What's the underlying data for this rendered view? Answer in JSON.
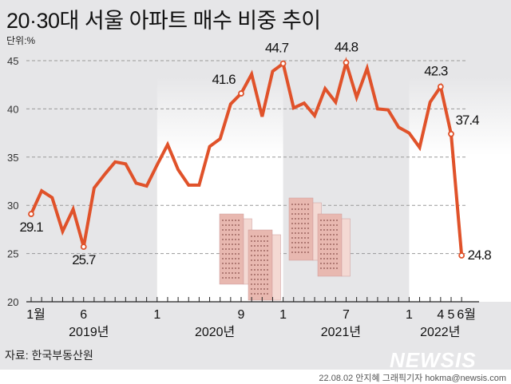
{
  "title": "20·30대 서울 아파트 매수 비중 추이",
  "unit": "단위:%",
  "source": "자료: 한국부동산원",
  "logo": "NEWSIS",
  "credit": "22.08.02 안지혜 그래픽기자 hokma@newsis.com",
  "colors": {
    "line": "#e0522a",
    "panel": "#e6e6e8",
    "text": "#111111"
  },
  "chart_data": {
    "type": "line",
    "title": "20·30대 서울 아파트 매수 비중 추이",
    "ylabel": "단위:%",
    "ylim": [
      20,
      45
    ],
    "yticks": [
      "20",
      "25",
      "30",
      "35",
      "40",
      "45"
    ],
    "grid": true,
    "x": [
      "2019-01",
      "2019-02",
      "2019-03",
      "2019-04",
      "2019-05",
      "2019-06",
      "2019-07",
      "2019-08",
      "2019-09",
      "2019-10",
      "2019-11",
      "2019-12",
      "2020-01",
      "2020-02",
      "2020-03",
      "2020-04",
      "2020-05",
      "2020-06",
      "2020-07",
      "2020-08",
      "2020-09",
      "2020-10",
      "2020-11",
      "2020-12",
      "2021-01",
      "2021-02",
      "2021-03",
      "2021-04",
      "2021-05",
      "2021-06",
      "2021-07",
      "2021-08",
      "2021-09",
      "2021-10",
      "2021-11",
      "2021-12",
      "2022-01",
      "2022-02",
      "2022-03",
      "2022-04",
      "2022-05",
      "2022-06"
    ],
    "values": [
      29.1,
      31.5,
      30.8,
      27.3,
      29.6,
      25.7,
      31.8,
      33.2,
      34.5,
      34.3,
      32.3,
      32.0,
      34.2,
      36.3,
      33.7,
      32.1,
      32.1,
      36.1,
      36.9,
      40.5,
      41.6,
      43.6,
      39.2,
      43.9,
      44.7,
      40.1,
      40.6,
      39.3,
      42.1,
      40.7,
      44.8,
      41.2,
      44.2,
      40.0,
      39.9,
      38.1,
      37.5,
      36.0,
      40.7,
      42.3,
      37.4,
      24.8
    ],
    "data_labels": [
      {
        "index": 0,
        "text": "29.1"
      },
      {
        "index": 5,
        "text": "25.7"
      },
      {
        "index": 20,
        "text": "41.6"
      },
      {
        "index": 24,
        "text": "44.7"
      },
      {
        "index": 30,
        "text": "44.8"
      },
      {
        "index": 39,
        "text": "42.3"
      },
      {
        "index": 40,
        "text": "37.4"
      },
      {
        "index": 41,
        "text": "24.8"
      }
    ],
    "xtick_labels": [
      {
        "index": 0,
        "text": "1월"
      },
      {
        "index": 5,
        "text": "6"
      },
      {
        "index": 12,
        "text": "1"
      },
      {
        "index": 20,
        "text": "9"
      },
      {
        "index": 24,
        "text": "1"
      },
      {
        "index": 30,
        "text": "7"
      },
      {
        "index": 36,
        "text": "1"
      },
      {
        "index": 39,
        "text": "4"
      },
      {
        "index": 40,
        "text": "5"
      },
      {
        "index": 41,
        "text": "6월"
      }
    ],
    "year_labels": [
      {
        "start": 0,
        "end": 11,
        "text": "2019년"
      },
      {
        "start": 12,
        "end": 23,
        "text": "2020년"
      },
      {
        "start": 24,
        "end": 35,
        "text": "2021년"
      },
      {
        "start": 36,
        "end": 41,
        "text": "2022년"
      }
    ]
  }
}
